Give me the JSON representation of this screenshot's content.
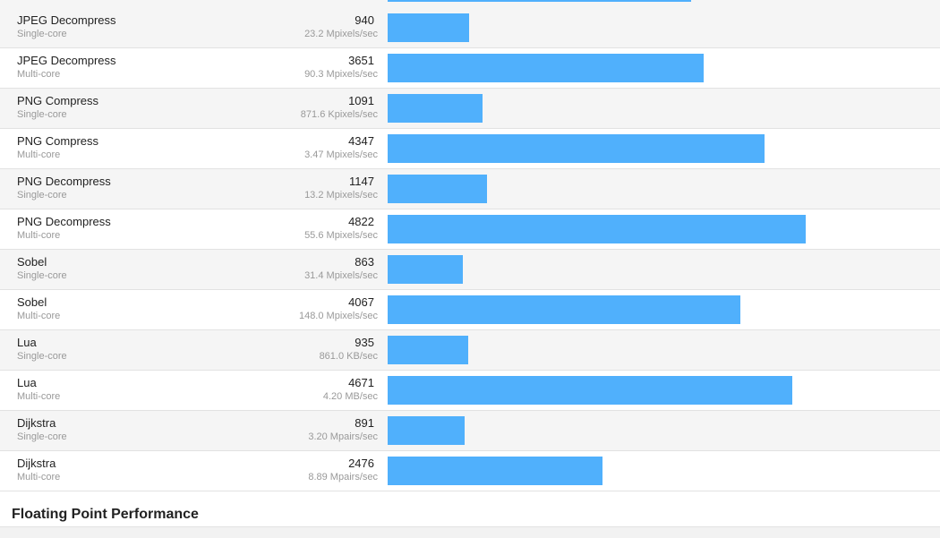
{
  "colors": {
    "bar": "#50b0fc",
    "row_alt": "#f5f5f5",
    "divider": "#e2e2e2"
  },
  "max_score": 6200,
  "top_partial_row_score": 3500,
  "rows": [
    {
      "name": "JPEG Decompress",
      "mode": "Single-core",
      "score": "940",
      "rate": "23.2 Mpixels/sec"
    },
    {
      "name": "JPEG Decompress",
      "mode": "Multi-core",
      "score": "3651",
      "rate": "90.3 Mpixels/sec"
    },
    {
      "name": "PNG Compress",
      "mode": "Single-core",
      "score": "1091",
      "rate": "871.6 Kpixels/sec"
    },
    {
      "name": "PNG Compress",
      "mode": "Multi-core",
      "score": "4347",
      "rate": "3.47 Mpixels/sec"
    },
    {
      "name": "PNG Decompress",
      "mode": "Single-core",
      "score": "1147",
      "rate": "13.2 Mpixels/sec"
    },
    {
      "name": "PNG Decompress",
      "mode": "Multi-core",
      "score": "4822",
      "rate": "55.6 Mpixels/sec"
    },
    {
      "name": "Sobel",
      "mode": "Single-core",
      "score": "863",
      "rate": "31.4 Mpixels/sec"
    },
    {
      "name": "Sobel",
      "mode": "Multi-core",
      "score": "4067",
      "rate": "148.0 Mpixels/sec"
    },
    {
      "name": "Lua",
      "mode": "Single-core",
      "score": "935",
      "rate": "861.0 KB/sec"
    },
    {
      "name": "Lua",
      "mode": "Multi-core",
      "score": "4671",
      "rate": "4.20 MB/sec"
    },
    {
      "name": "Dijkstra",
      "mode": "Single-core",
      "score": "891",
      "rate": "3.20 Mpairs/sec"
    },
    {
      "name": "Dijkstra",
      "mode": "Multi-core",
      "score": "2476",
      "rate": "8.89 Mpairs/sec"
    }
  ],
  "section": {
    "title": "Floating Point Performance"
  }
}
